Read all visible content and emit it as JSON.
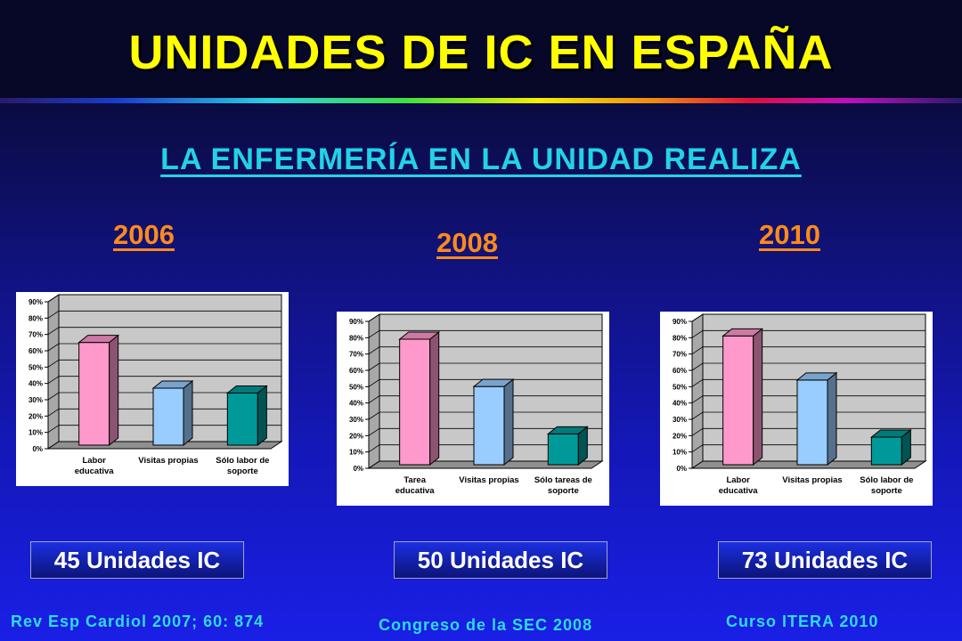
{
  "title": "UNIDADES DE IC EN ESPAÑA",
  "subtitle": "LA ENFERMERÍA EN LA UNIDAD REALIZA",
  "colors": {
    "title": "#ffff00",
    "subtitle": "#22d3e8",
    "year": "#ff8a1a",
    "references": "#2ddbe8",
    "bar_colors": [
      "#ff99cc",
      "#99ccff",
      "#009999"
    ]
  },
  "panels": [
    {
      "year": "2006",
      "units_label": "45 Unidades IC",
      "reference": "Rev Esp Cardiol 2007; 60: 874"
    },
    {
      "year": "2008",
      "units_label": "50 Unidades IC",
      "reference": "Congreso de la SEC 2008"
    },
    {
      "year": "2010",
      "units_label": "73 Unidades IC",
      "reference": "Curso ITERA 2010"
    }
  ],
  "chart_data": [
    {
      "type": "bar",
      "categories": [
        [
          "Labor",
          "educativa"
        ],
        [
          "Visitas propias"
        ],
        [
          "Sólo labor de",
          "soporte"
        ]
      ],
      "values": [
        64,
        36,
        33
      ],
      "ylim": [
        0,
        90
      ],
      "yticks": [
        "0%",
        "10%",
        "20%",
        "30%",
        "40%",
        "50%",
        "60%",
        "70%",
        "80%",
        "90%"
      ],
      "grid": true
    },
    {
      "type": "bar",
      "categories": [
        [
          "Tarea",
          "educativa"
        ],
        [
          "Visitas propias"
        ],
        [
          "Sólo tareas de",
          "soporte"
        ]
      ],
      "values": [
        78,
        49,
        20
      ],
      "ylim": [
        0,
        90
      ],
      "yticks": [
        "0%",
        "10%",
        "20%",
        "30%",
        "40%",
        "50%",
        "60%",
        "70%",
        "80%",
        "90%"
      ],
      "grid": true
    },
    {
      "type": "bar",
      "categories": [
        [
          "Labor",
          "educativa"
        ],
        [
          "Visitas propias"
        ],
        [
          "Sólo labor de",
          "soporte"
        ]
      ],
      "values": [
        80,
        53,
        18
      ],
      "ylim": [
        0,
        90
      ],
      "yticks": [
        "0%",
        "10%",
        "20%",
        "30%",
        "40%",
        "50%",
        "60%",
        "70%",
        "80%",
        "90%"
      ],
      "grid": true
    }
  ]
}
